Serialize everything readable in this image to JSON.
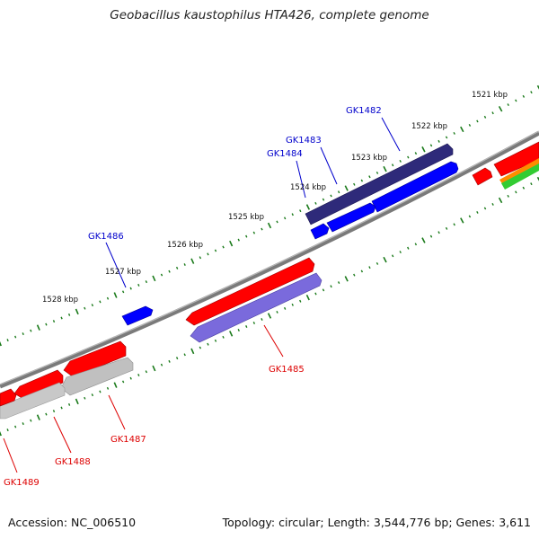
{
  "title": "Geobacillus kaustophilus HTA426, complete genome",
  "accession": "Accession: NC_006510",
  "summary": "Topology: circular; Length: 3,544,776 bp; Genes: 3,611",
  "colors": {
    "backbone": "#6e6e6e",
    "tick": "#1a7a1a",
    "ruler_label": "#111111",
    "forward_label": "#0000cc",
    "reverse_label": "#dd0000",
    "cds_red": "#ff0000",
    "cds_blue": "#0000ff",
    "cds_navy": "#2e2a7a",
    "cds_violet": "#6a5acd",
    "cds_gray": "#bdbdbd",
    "cds_orange": "#ff8c00",
    "cds_green": "#33cc33"
  },
  "ruler": {
    "unit": "kbp",
    "labels": [
      "1521 kbp",
      "1522 kbp",
      "1523 kbp",
      "1524 kbp",
      "1525 kbp",
      "1526 kbp",
      "1527 kbp",
      "1528 kbp"
    ]
  },
  "gene_labels": {
    "forward": [
      "GK1482",
      "GK1483",
      "GK1484",
      "GK1486"
    ],
    "reverse": [
      "GK1485",
      "GK1487",
      "GK1488",
      "GK1489"
    ]
  }
}
